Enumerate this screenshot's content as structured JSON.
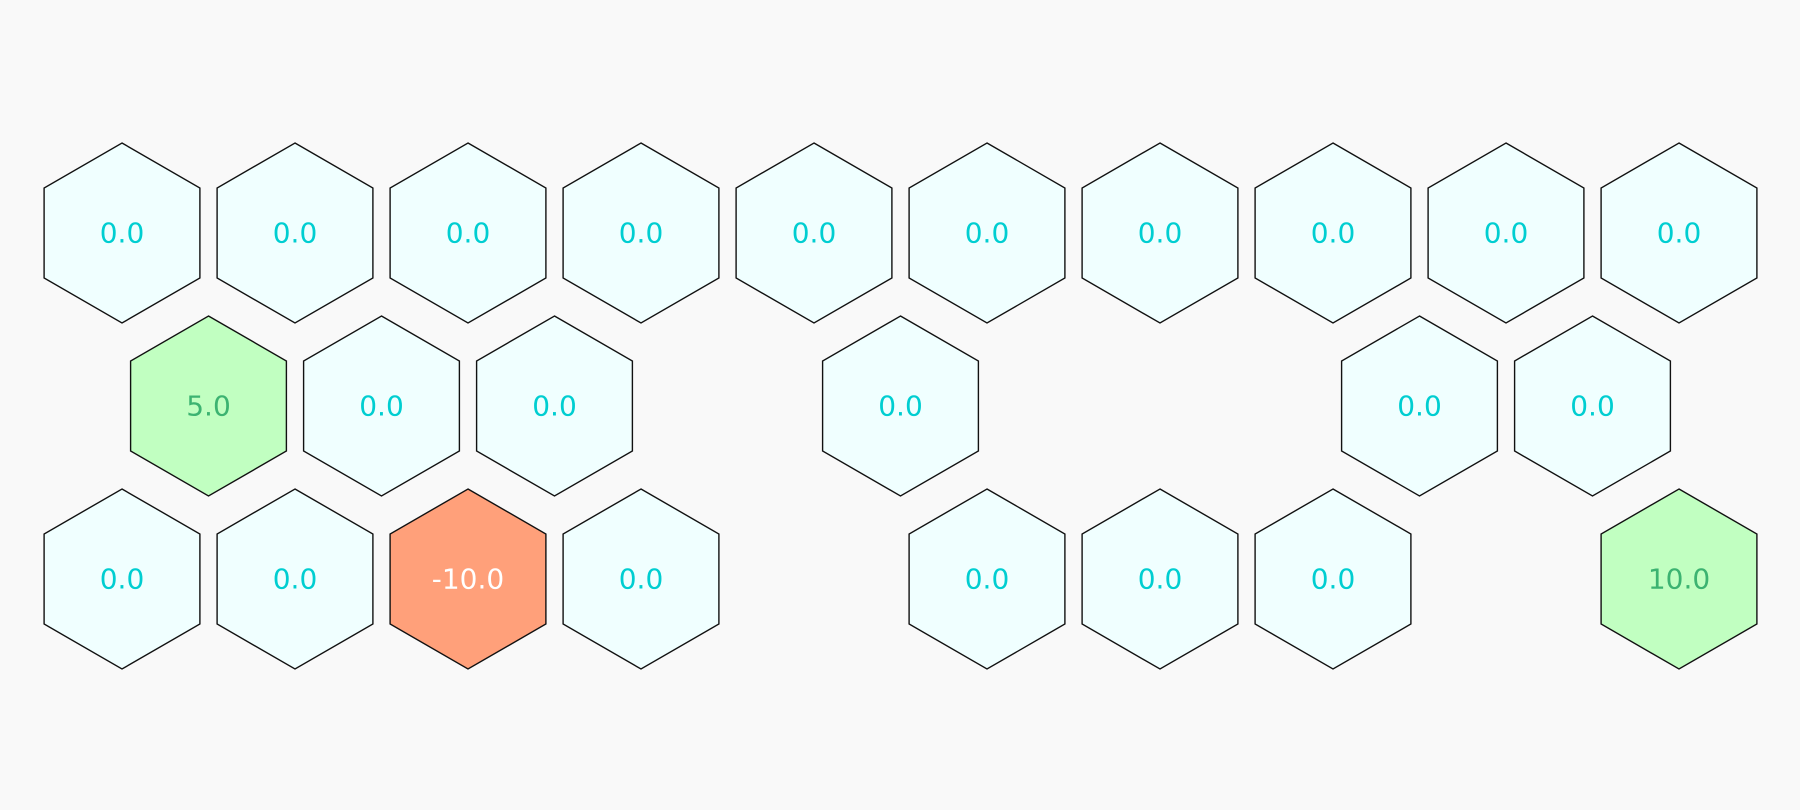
{
  "palette": {
    "background": "#f9f9f9",
    "neutral_fill": "#f0ffff",
    "neutral_text": "#00ced1",
    "positive_fill": "#c1ffc1",
    "positive_text": "#3cb371",
    "negative_fill": "#ffa07a",
    "negative_text": "#ffffff"
  },
  "grid": {
    "rows": [
      {
        "name": "row-1",
        "cells": [
          {
            "label": "0.0",
            "value": 0.0,
            "kind": "neutral"
          },
          {
            "label": "0.0",
            "value": 0.0,
            "kind": "neutral"
          },
          {
            "label": "0.0",
            "value": 0.0,
            "kind": "neutral"
          },
          {
            "label": "0.0",
            "value": 0.0,
            "kind": "neutral"
          },
          {
            "label": "0.0",
            "value": 0.0,
            "kind": "neutral"
          },
          {
            "label": "0.0",
            "value": 0.0,
            "kind": "neutral"
          },
          {
            "label": "0.0",
            "value": 0.0,
            "kind": "neutral"
          },
          {
            "label": "0.0",
            "value": 0.0,
            "kind": "neutral"
          },
          {
            "label": "0.0",
            "value": 0.0,
            "kind": "neutral"
          },
          {
            "label": "0.0",
            "value": 0.0,
            "kind": "neutral"
          }
        ]
      },
      {
        "name": "row-2",
        "cells": [
          {
            "label": "5.0",
            "value": 5.0,
            "kind": "positive"
          },
          {
            "label": "0.0",
            "value": 0.0,
            "kind": "neutral"
          },
          {
            "label": "0.0",
            "value": 0.0,
            "kind": "neutral"
          },
          null,
          {
            "label": "0.0",
            "value": 0.0,
            "kind": "neutral"
          },
          null,
          null,
          {
            "label": "0.0",
            "value": 0.0,
            "kind": "neutral"
          },
          {
            "label": "0.0",
            "value": 0.0,
            "kind": "neutral"
          },
          null
        ]
      },
      {
        "name": "row-3",
        "cells": [
          {
            "label": "0.0",
            "value": 0.0,
            "kind": "neutral"
          },
          {
            "label": "0.0",
            "value": 0.0,
            "kind": "neutral"
          },
          {
            "label": "-10.0",
            "value": -10.0,
            "kind": "negative"
          },
          {
            "label": "0.0",
            "value": 0.0,
            "kind": "neutral"
          },
          null,
          {
            "label": "0.0",
            "value": 0.0,
            "kind": "neutral"
          },
          {
            "label": "0.0",
            "value": 0.0,
            "kind": "neutral"
          },
          {
            "label": "0.0",
            "value": 0.0,
            "kind": "neutral"
          },
          null,
          {
            "label": "10.0",
            "value": 10.0,
            "kind": "positive"
          }
        ]
      }
    ]
  }
}
